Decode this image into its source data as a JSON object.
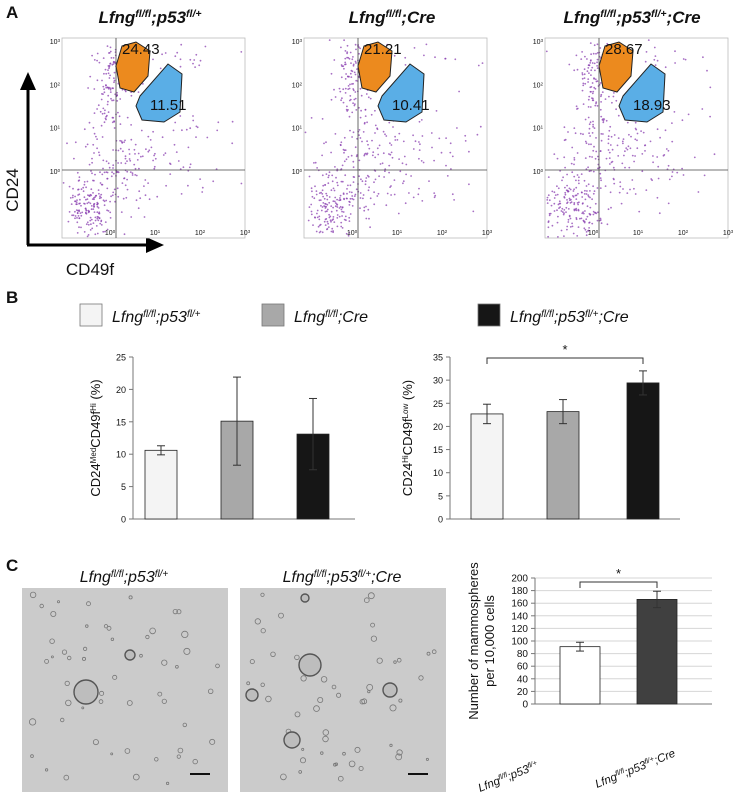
{
  "panel_labels": [
    "A",
    "B",
    "C"
  ],
  "flow": {
    "y_label": "CD24",
    "x_label": "CD49f",
    "ticks": [
      [
        [
          "10",
          "0"
        ]
      ],
      [
        [
          "10",
          "1"
        ]
      ],
      [
        [
          "10",
          "2"
        ]
      ],
      [
        [
          "10",
          "3"
        ]
      ]
    ],
    "plots": [
      {
        "title": [
          [
            "Lfng",
            "fl/fl"
          ],
          [
            ";p53",
            "fl/+"
          ]
        ],
        "upper_gate": 24.43,
        "lower_gate": 11.51
      },
      {
        "title": [
          [
            "Lfng",
            "fl/fl"
          ],
          [
            ";Cre"
          ]
        ],
        "upper_gate": 21.21,
        "lower_gate": 10.41
      },
      {
        "title": [
          [
            "Lfng",
            "fl/fl"
          ],
          [
            ";p53",
            "fl/+"
          ],
          [
            ";Cre"
          ]
        ],
        "upper_gate": 28.67,
        "lower_gate": 18.93
      }
    ]
  },
  "legend": [
    {
      "name": [
        [
          "Lfng",
          "fl/fl"
        ],
        [
          ";p53",
          "fl/+"
        ]
      ],
      "color": "#f4f4f4"
    },
    {
      "name": [
        [
          "Lfng",
          "fl/fl"
        ],
        [
          ";Cre"
        ]
      ],
      "color": "#a8a8a8"
    },
    {
      "name": [
        [
          "Lfng",
          "fl/fl"
        ],
        [
          ";p53",
          "fl/+"
        ],
        [
          ";Cre"
        ]
      ],
      "color": "#161616"
    }
  ],
  "chart_data": [
    {
      "type": "bar",
      "ylabel": [
        [
          [
            "CD24",
            "Med"
          ],
          [
            "CD49f",
            "Hi"
          ],
          [
            " (%)"
          ]
        ]
      ],
      "categories": [
        null,
        null,
        null
      ],
      "values": [
        10.6,
        15.1,
        13.1
      ],
      "errors": [
        0.7,
        6.8,
        5.5
      ],
      "colors": [
        "#f4f4f4",
        "#a8a8a8",
        "#161616"
      ],
      "ylim": [
        0,
        25
      ],
      "yticks": [
        0,
        5,
        10,
        15,
        20,
        25
      ]
    },
    {
      "type": "bar",
      "ylabel": [
        [
          [
            "CD24",
            "Hi"
          ],
          [
            "CD49f",
            "Low"
          ],
          [
            " (%)"
          ]
        ]
      ],
      "categories": [
        null,
        null,
        null
      ],
      "values": [
        22.7,
        23.2,
        29.4
      ],
      "errors": [
        2.1,
        2.6,
        2.6
      ],
      "colors": [
        "#f4f4f4",
        "#a8a8a8",
        "#161616"
      ],
      "ylim": [
        0,
        35
      ],
      "yticks": [
        0,
        5,
        10,
        15,
        20,
        25,
        30,
        35
      ],
      "significance": "*"
    },
    {
      "type": "bar",
      "ylabel": [
        [
          [
            "Number of mammospheres"
          ]
        ],
        [
          [
            "per 10,000 cells"
          ]
        ]
      ],
      "categories": [
        [
          [
            "Lfng",
            "fl/fl"
          ],
          [
            ";p53",
            "fl/+"
          ]
        ],
        [
          [
            "Lfng",
            "fl/fl"
          ],
          [
            ";p53",
            "fl/+"
          ],
          [
            ";Cre"
          ]
        ]
      ],
      "values": [
        91,
        166
      ],
      "errors": [
        7,
        13
      ],
      "colors": [
        "#ffffff",
        "#404040"
      ],
      "ylim": [
        0,
        200
      ],
      "yticks": [
        0,
        20,
        40,
        60,
        80,
        100,
        120,
        140,
        160,
        180,
        200
      ],
      "grid": true,
      "significance": "*"
    }
  ],
  "micrographs": [
    [
      [
        "Lfng",
        "fl/fl"
      ],
      [
        ";p53",
        "fl/+"
      ]
    ],
    [
      [
        "Lfng",
        "fl/fl"
      ],
      [
        ";p53",
        "fl/+"
      ],
      [
        ";Cre"
      ]
    ]
  ]
}
